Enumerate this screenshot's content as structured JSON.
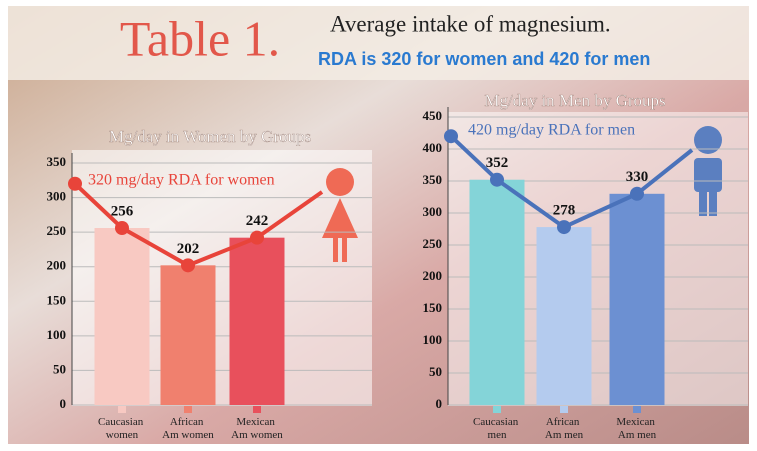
{
  "header": {
    "title": "Table 1.",
    "subtitle": "Average intake of magnesium.",
    "note": "RDA is 320 for women and 420 for men"
  },
  "chart_data": [
    {
      "type": "bar",
      "title": "Mg/day in Women by Groups",
      "categories": [
        "Caucasian women",
        "African Am women",
        "Mexican Am women"
      ],
      "values": [
        256,
        202,
        242
      ],
      "colors": [
        "#f8c9c2",
        "#f0806e",
        "#e8505c"
      ],
      "rda": 320,
      "annotation": "320 mg/day RDA for women",
      "line_color": "#e8443a",
      "ylim": [
        0,
        350
      ],
      "yticks": [
        0,
        50,
        100,
        150,
        200,
        250,
        300,
        350
      ],
      "grid": true
    },
    {
      "type": "bar",
      "title": "Mg/day in Men by Groups",
      "categories": [
        "Caucasian men",
        "African Am men",
        "Mexican Am men"
      ],
      "values": [
        352,
        278,
        330
      ],
      "colors": [
        "#84d4d8",
        "#b4cbee",
        "#6c90d2"
      ],
      "rda": 420,
      "annotation": "420 mg/day RDA for men",
      "line_color": "#4a72ba",
      "ylim": [
        0,
        450
      ],
      "yticks": [
        0,
        50,
        100,
        150,
        200,
        250,
        300,
        350,
        400,
        450
      ],
      "grid": true
    }
  ]
}
